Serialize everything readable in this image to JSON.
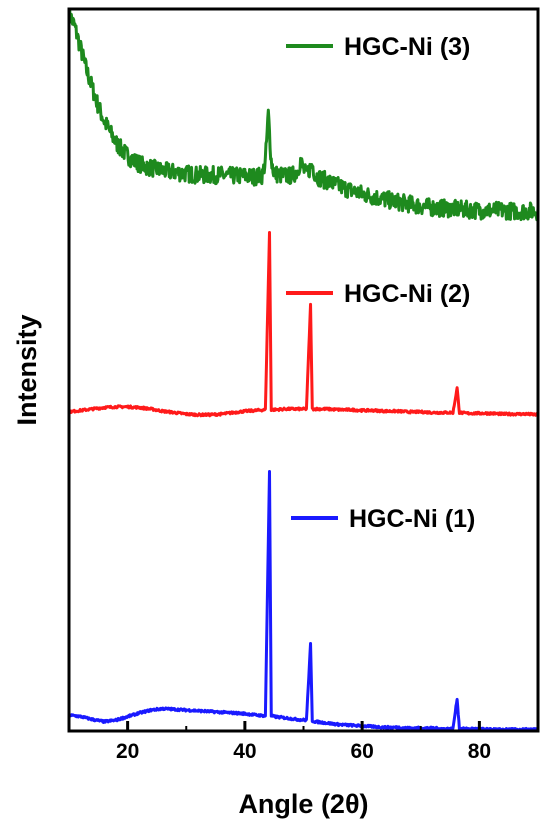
{
  "chart_data": {
    "type": "line",
    "xlabel": "Angle (2θ)",
    "ylabel": "Intensity",
    "xlim": [
      10,
      90
    ],
    "ylim": [
      0,
      1
    ],
    "x_ticks": [
      20,
      40,
      60,
      80
    ],
    "x_tick_labels": [
      "20",
      "40",
      "60",
      "80"
    ],
    "y_ticks_shown": false,
    "grid": false,
    "legend": "per-series labels inside plot, right side",
    "series": [
      {
        "name": "HGC-Ni (3)",
        "color": "#1e8a1e",
        "noise": 0.012,
        "x": [
          10,
          11,
          12,
          13,
          14,
          15,
          16,
          17,
          18,
          19,
          20,
          21,
          22,
          23,
          24,
          25,
          26,
          27,
          28,
          29,
          30,
          31,
          32,
          33,
          34,
          35,
          36,
          37,
          38,
          39,
          40,
          41,
          42,
          43,
          43.5,
          44.0,
          44.5,
          45,
          46,
          47,
          48,
          49,
          49.5,
          50,
          50.5,
          51,
          51.5,
          52,
          53,
          54,
          55,
          56,
          57,
          58,
          60,
          62,
          64,
          66,
          68,
          70,
          72,
          74,
          76,
          78,
          80,
          82,
          84,
          86,
          88,
          90
        ],
        "y": [
          0.995,
          0.975,
          0.945,
          0.915,
          0.89,
          0.865,
          0.845,
          0.83,
          0.815,
          0.805,
          0.797,
          0.79,
          0.786,
          0.782,
          0.78,
          0.778,
          0.776,
          0.775,
          0.774,
          0.773,
          0.772,
          0.771,
          0.77,
          0.77,
          0.77,
          0.77,
          0.77,
          0.769,
          0.769,
          0.769,
          0.769,
          0.768,
          0.768,
          0.77,
          0.79,
          0.855,
          0.79,
          0.772,
          0.77,
          0.769,
          0.769,
          0.776,
          0.79,
          0.778,
          0.77,
          0.778,
          0.785,
          0.77,
          0.765,
          0.762,
          0.758,
          0.755,
          0.752,
          0.749,
          0.744,
          0.74,
          0.736,
          0.733,
          0.73,
          0.727,
          0.725,
          0.724,
          0.723,
          0.722,
          0.721,
          0.721,
          0.721,
          0.72,
          0.72,
          0.72
        ]
      },
      {
        "name": "HGC-Ni (2)",
        "color": "#ff1a1a",
        "noise": 0.0015,
        "x": [
          10,
          12,
          14,
          16,
          18,
          20,
          22,
          24,
          26,
          28,
          30,
          32,
          34,
          36,
          38,
          40,
          42,
          43.5,
          44.2,
          44.5,
          45,
          47,
          49,
          50.5,
          51.2,
          51.5,
          52,
          54,
          56,
          58,
          60,
          62,
          64,
          66,
          68,
          70,
          72,
          74,
          75.5,
          76.2,
          76.6,
          78,
          80,
          82,
          84,
          86,
          88,
          90
        ],
        "y": [
          0.442,
          0.444,
          0.446,
          0.448,
          0.449,
          0.449,
          0.448,
          0.446,
          0.443,
          0.441,
          0.439,
          0.438,
          0.438,
          0.439,
          0.441,
          0.443,
          0.444,
          0.445,
          0.69,
          0.445,
          0.445,
          0.446,
          0.446,
          0.446,
          0.59,
          0.446,
          0.446,
          0.446,
          0.445,
          0.445,
          0.444,
          0.444,
          0.443,
          0.443,
          0.442,
          0.442,
          0.441,
          0.441,
          0.441,
          0.475,
          0.441,
          0.44,
          0.44,
          0.44,
          0.439,
          0.439,
          0.439,
          0.438
        ]
      },
      {
        "name": "HGC-Ni (1)",
        "color": "#1a1aff",
        "noise": 0.0015,
        "x": [
          10,
          12,
          14,
          16,
          18,
          20,
          22,
          24,
          26,
          28,
          30,
          32,
          34,
          36,
          38,
          40,
          42,
          43.5,
          44.2,
          44.5,
          45,
          47,
          49,
          50.5,
          51.2,
          51.5,
          52,
          54,
          56,
          58,
          60,
          62,
          64,
          66,
          68,
          70,
          72,
          74,
          75.5,
          76.2,
          76.6,
          78,
          80,
          82,
          84,
          86,
          88,
          90
        ],
        "y": [
          0.022,
          0.02,
          0.016,
          0.013,
          0.015,
          0.02,
          0.025,
          0.029,
          0.031,
          0.03,
          0.029,
          0.028,
          0.027,
          0.026,
          0.025,
          0.024,
          0.022,
          0.021,
          0.36,
          0.021,
          0.02,
          0.018,
          0.016,
          0.015,
          0.12,
          0.014,
          0.013,
          0.011,
          0.009,
          0.008,
          0.007,
          0.006,
          0.005,
          0.005,
          0.004,
          0.004,
          0.004,
          0.003,
          0.003,
          0.045,
          0.003,
          0.003,
          0.003,
          0.002,
          0.002,
          0.002,
          0.002,
          0.002
        ]
      }
    ]
  }
}
